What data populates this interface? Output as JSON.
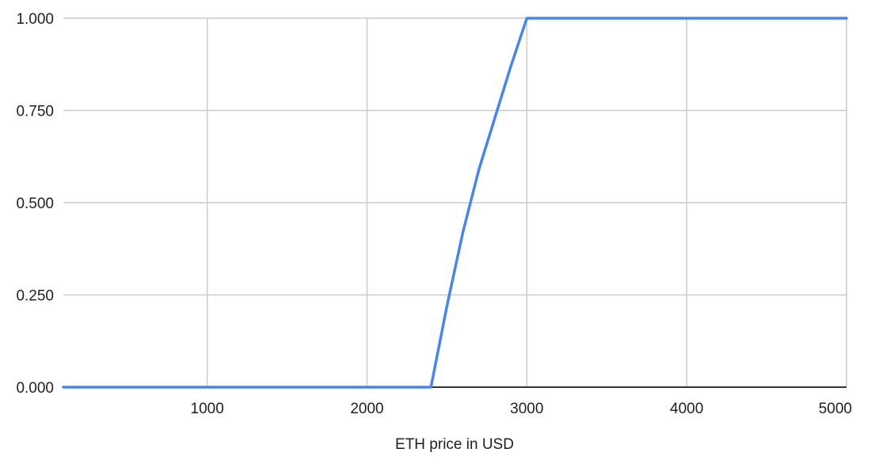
{
  "chart_data": {
    "type": "line",
    "title": "",
    "xlabel": "ETH price in USD",
    "ylabel": "",
    "xlim": [
      100,
      5000
    ],
    "ylim": [
      0,
      1
    ],
    "x_ticks": [
      1000,
      2000,
      3000,
      4000,
      5000
    ],
    "x_tick_labels": [
      "1000",
      "2000",
      "3000",
      "4000",
      "5000"
    ],
    "y_ticks": [
      0,
      0.25,
      0.5,
      0.75,
      1
    ],
    "y_tick_labels": [
      "0.000",
      "0.250",
      "0.500",
      "0.750",
      "1.000"
    ],
    "grid": true,
    "legend": "none",
    "series": [
      {
        "color": "#4a86e8",
        "x": [
          100,
          2400,
          2500,
          2600,
          2700,
          2800,
          2900,
          3000,
          4000,
          5000
        ],
        "y": [
          0,
          0,
          0.22,
          0.42,
          0.59,
          0.73,
          0.87,
          1,
          1,
          1
        ]
      }
    ],
    "grid_color": "#cccccc",
    "axis_color": "#333333"
  }
}
